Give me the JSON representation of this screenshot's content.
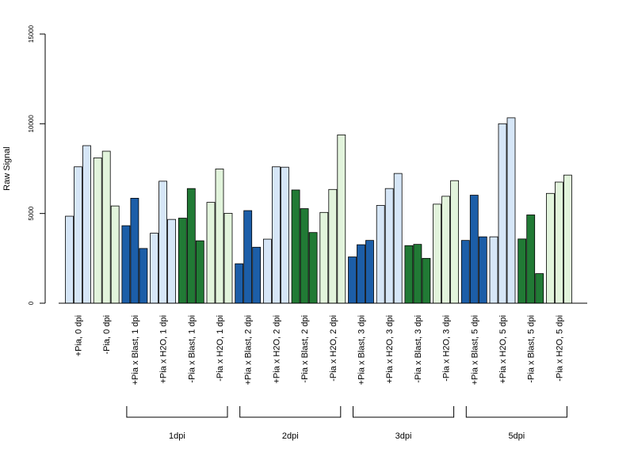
{
  "chart_data": {
    "type": "bar",
    "title": "",
    "xlabel": "",
    "ylabel": "Raw Signal",
    "ylim": [
      0,
      15000
    ],
    "yticks": [
      0,
      5000,
      10000,
      15000
    ],
    "grid": false,
    "legend": "none",
    "categories": [
      "+Pia, 0 dpi",
      "-Pia, 0 dpi",
      "+Pia x Blast, 1 dpi",
      "+Pia x H2O, 1 dpi",
      "-Pia x Blast, 1 dpi",
      "-Pia x H2O, 1 dpi",
      "+Pia x Blast, 2 dpi",
      "+Pia x H2O, 2 dpi",
      "-Pia x Blast, 2 dpi",
      "-Pia x H2O, 2 dpi",
      "+Pia x Blast, 3 dpi",
      "+Pia x H2O, 3 dpi",
      "-Pia x Blast, 3 dpi",
      "-Pia x H2O, 3 dpi",
      "+Pia x Blast, 5 dpi",
      "+Pia x H2O, 5 dpi",
      "-Pia x Blast, 5 dpi",
      "-Pia x H2O, 5 dpi"
    ],
    "group_fill": [
      "#d6e6f7",
      "#e2f4dc",
      "#1c5ea8",
      "#d6e6f7",
      "#217a35",
      "#e2f4dc",
      "#1c5ea8",
      "#d6e6f7",
      "#217a35",
      "#e2f4dc",
      "#1c5ea8",
      "#d6e6f7",
      "#217a35",
      "#e2f4dc",
      "#1c5ea8",
      "#d6e6f7",
      "#217a35",
      "#e2f4dc"
    ],
    "replicates": [
      [
        4850,
        7600,
        8780
      ],
      [
        8100,
        8470,
        5420
      ],
      [
        4320,
        5850,
        3050
      ],
      [
        3900,
        6800,
        4670
      ],
      [
        4740,
        6390,
        3480
      ],
      [
        5620,
        7480,
        5010
      ],
      [
        2200,
        5160,
        3120
      ],
      [
        3570,
        7600,
        7580
      ],
      [
        6310,
        5270,
        3940
      ],
      [
        5060,
        6340,
        9380
      ],
      [
        2580,
        3260,
        3500
      ],
      [
        5450,
        6390,
        7230
      ],
      [
        3210,
        3280,
        2500
      ],
      [
        5520,
        5960,
        6830
      ],
      [
        3500,
        6020,
        3700
      ],
      [
        3700,
        10000,
        10330
      ],
      [
        3580,
        4920,
        1650
      ],
      [
        6120,
        6750,
        7140
      ]
    ],
    "time_brackets": [
      {
        "label": "1dpi",
        "from": 2,
        "to": 5
      },
      {
        "label": "2dpi",
        "from": 6,
        "to": 9
      },
      {
        "label": "3dpi",
        "from": 10,
        "to": 13
      },
      {
        "label": "5dpi",
        "from": 14,
        "to": 17
      }
    ]
  }
}
